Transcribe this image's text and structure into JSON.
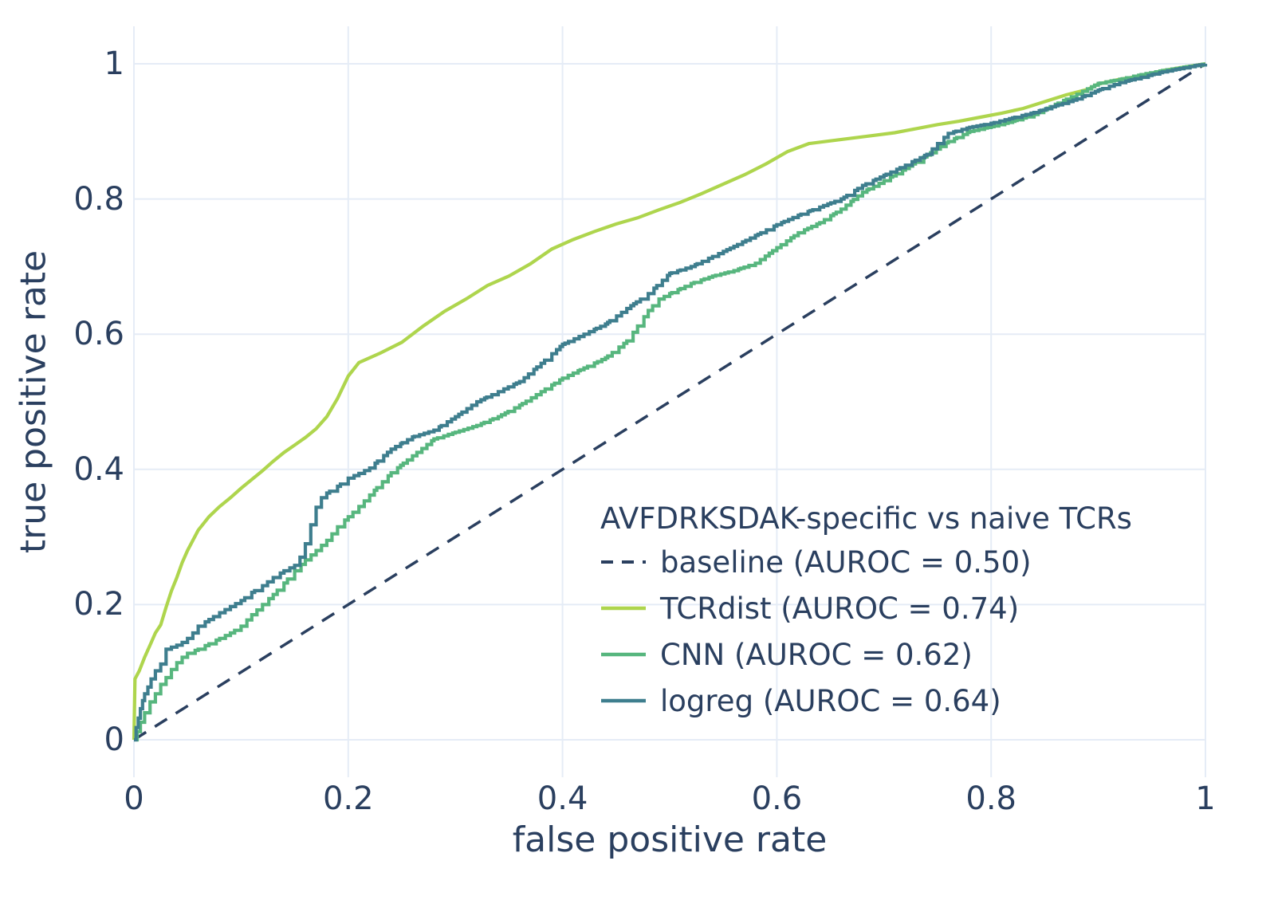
{
  "figure": {
    "background": "#ffffff",
    "text_color": "#2a3f5f",
    "grid_color": "#e5ecf6"
  },
  "axes": {
    "x": {
      "title": "false positive rate",
      "tick_labels": [
        "0",
        "0.2",
        "0.4",
        "0.6",
        "0.8",
        "1"
      ],
      "tick_values": [
        0,
        0.2,
        0.4,
        0.6,
        0.8,
        1
      ]
    },
    "y": {
      "title": "true positive rate",
      "tick_labels": [
        "0",
        "0.2",
        "0.4",
        "0.6",
        "0.8",
        "1"
      ],
      "tick_values": [
        0,
        0.2,
        0.4,
        0.6,
        0.8,
        1
      ]
    }
  },
  "legend": {
    "title": "AVFDRKSDAK-specific vs naive TCRs",
    "position": "lower right"
  },
  "chart_data": {
    "type": "line",
    "title": "AVFDRKSDAK-specific vs naive TCRs",
    "xlabel": "false positive rate",
    "ylabel": "true positive rate",
    "xlim": [
      0,
      1
    ],
    "ylim": [
      0,
      1
    ],
    "grid": true,
    "legend_position": "lower right",
    "series": [
      {
        "name": "baseline",
        "label": "baseline (AUROC = 0.50)",
        "auroc": 0.5,
        "color": "#2a3f5f",
        "dash": "dashed",
        "style": "line",
        "points": [
          [
            0,
            0
          ],
          [
            1,
            1
          ]
        ]
      },
      {
        "name": "TCRdist",
        "label": "TCRdist (AUROC = 0.74)",
        "auroc": 0.74,
        "color": "#aed54d",
        "dash": "solid",
        "style": "line",
        "points": [
          [
            0,
            0
          ],
          [
            0.001,
            0.09
          ],
          [
            0.005,
            0.102
          ],
          [
            0.01,
            0.122
          ],
          [
            0.015,
            0.14
          ],
          [
            0.02,
            0.158
          ],
          [
            0.025,
            0.17
          ],
          [
            0.03,
            0.196
          ],
          [
            0.035,
            0.22
          ],
          [
            0.04,
            0.24
          ],
          [
            0.045,
            0.262
          ],
          [
            0.05,
            0.28
          ],
          [
            0.06,
            0.31
          ],
          [
            0.07,
            0.33
          ],
          [
            0.08,
            0.345
          ],
          [
            0.09,
            0.358
          ],
          [
            0.1,
            0.372
          ],
          [
            0.11,
            0.385
          ],
          [
            0.12,
            0.398
          ],
          [
            0.13,
            0.412
          ],
          [
            0.14,
            0.425
          ],
          [
            0.15,
            0.436
          ],
          [
            0.16,
            0.447
          ],
          [
            0.17,
            0.46
          ],
          [
            0.18,
            0.478
          ],
          [
            0.19,
            0.505
          ],
          [
            0.2,
            0.538
          ],
          [
            0.21,
            0.558
          ],
          [
            0.23,
            0.572
          ],
          [
            0.25,
            0.588
          ],
          [
            0.27,
            0.612
          ],
          [
            0.29,
            0.634
          ],
          [
            0.31,
            0.652
          ],
          [
            0.33,
            0.672
          ],
          [
            0.35,
            0.686
          ],
          [
            0.37,
            0.704
          ],
          [
            0.39,
            0.726
          ],
          [
            0.41,
            0.74
          ],
          [
            0.43,
            0.752
          ],
          [
            0.45,
            0.763
          ],
          [
            0.47,
            0.772
          ],
          [
            0.49,
            0.784
          ],
          [
            0.51,
            0.795
          ],
          [
            0.53,
            0.808
          ],
          [
            0.55,
            0.822
          ],
          [
            0.57,
            0.836
          ],
          [
            0.59,
            0.852
          ],
          [
            0.61,
            0.87
          ],
          [
            0.63,
            0.882
          ],
          [
            0.65,
            0.886
          ],
          [
            0.67,
            0.89
          ],
          [
            0.69,
            0.894
          ],
          [
            0.71,
            0.898
          ],
          [
            0.73,
            0.904
          ],
          [
            0.75,
            0.91
          ],
          [
            0.77,
            0.915
          ],
          [
            0.79,
            0.921
          ],
          [
            0.81,
            0.927
          ],
          [
            0.83,
            0.934
          ],
          [
            0.85,
            0.944
          ],
          [
            0.87,
            0.954
          ],
          [
            0.89,
            0.962
          ],
          [
            0.9,
            0.97
          ],
          [
            0.92,
            0.977
          ],
          [
            0.94,
            0.982
          ],
          [
            0.96,
            0.99
          ],
          [
            0.98,
            0.995
          ],
          [
            1,
            1
          ]
        ]
      },
      {
        "name": "CNN",
        "label": "CNN (AUROC = 0.62)",
        "auroc": 0.62,
        "color": "#57b67e",
        "dash": "solid",
        "style": "step",
        "points": [
          [
            0,
            0
          ],
          [
            0.003,
            0.012
          ],
          [
            0.006,
            0.026
          ],
          [
            0.01,
            0.04
          ],
          [
            0.015,
            0.056
          ],
          [
            0.02,
            0.068
          ],
          [
            0.025,
            0.082
          ],
          [
            0.03,
            0.092
          ],
          [
            0.035,
            0.104
          ],
          [
            0.04,
            0.114
          ],
          [
            0.045,
            0.122
          ],
          [
            0.05,
            0.128
          ],
          [
            0.06,
            0.134
          ],
          [
            0.07,
            0.142
          ],
          [
            0.08,
            0.15
          ],
          [
            0.09,
            0.158
          ],
          [
            0.1,
            0.168
          ],
          [
            0.11,
            0.185
          ],
          [
            0.12,
            0.2
          ],
          [
            0.13,
            0.215
          ],
          [
            0.14,
            0.232
          ],
          [
            0.15,
            0.25
          ],
          [
            0.16,
            0.266
          ],
          [
            0.17,
            0.28
          ],
          [
            0.18,
            0.295
          ],
          [
            0.19,
            0.315
          ],
          [
            0.2,
            0.33
          ],
          [
            0.21,
            0.345
          ],
          [
            0.22,
            0.362
          ],
          [
            0.24,
            0.395
          ],
          [
            0.26,
            0.42
          ],
          [
            0.28,
            0.445
          ],
          [
            0.3,
            0.455
          ],
          [
            0.32,
            0.465
          ],
          [
            0.34,
            0.478
          ],
          [
            0.36,
            0.495
          ],
          [
            0.38,
            0.515
          ],
          [
            0.4,
            0.535
          ],
          [
            0.42,
            0.55
          ],
          [
            0.44,
            0.565
          ],
          [
            0.46,
            0.59
          ],
          [
            0.47,
            0.612
          ],
          [
            0.48,
            0.635
          ],
          [
            0.49,
            0.652
          ],
          [
            0.5,
            0.66
          ],
          [
            0.52,
            0.675
          ],
          [
            0.54,
            0.686
          ],
          [
            0.56,
            0.694
          ],
          [
            0.58,
            0.705
          ],
          [
            0.6,
            0.728
          ],
          [
            0.62,
            0.75
          ],
          [
            0.64,
            0.765
          ],
          [
            0.66,
            0.785
          ],
          [
            0.68,
            0.81
          ],
          [
            0.7,
            0.827
          ],
          [
            0.72,
            0.845
          ],
          [
            0.74,
            0.865
          ],
          [
            0.76,
            0.885
          ],
          [
            0.78,
            0.9
          ],
          [
            0.8,
            0.907
          ],
          [
            0.82,
            0.915
          ],
          [
            0.84,
            0.925
          ],
          [
            0.86,
            0.94
          ],
          [
            0.88,
            0.955
          ],
          [
            0.9,
            0.971
          ],
          [
            0.92,
            0.977
          ],
          [
            0.94,
            0.984
          ],
          [
            0.96,
            0.99
          ],
          [
            0.98,
            0.995
          ],
          [
            1,
            1
          ]
        ]
      },
      {
        "name": "logreg",
        "label": "logreg (AUROC = 0.64)",
        "auroc": 0.64,
        "color": "#3e7e8e",
        "dash": "solid",
        "style": "step",
        "points": [
          [
            0,
            0
          ],
          [
            0.002,
            0.018
          ],
          [
            0.004,
            0.032
          ],
          [
            0.006,
            0.046
          ],
          [
            0.008,
            0.058
          ],
          [
            0.01,
            0.068
          ],
          [
            0.013,
            0.078
          ],
          [
            0.016,
            0.09
          ],
          [
            0.02,
            0.102
          ],
          [
            0.025,
            0.112
          ],
          [
            0.03,
            0.134
          ],
          [
            0.035,
            0.137
          ],
          [
            0.04,
            0.14
          ],
          [
            0.045,
            0.144
          ],
          [
            0.05,
            0.15
          ],
          [
            0.055,
            0.158
          ],
          [
            0.06,
            0.168
          ],
          [
            0.07,
            0.178
          ],
          [
            0.08,
            0.188
          ],
          [
            0.09,
            0.197
          ],
          [
            0.1,
            0.206
          ],
          [
            0.11,
            0.218
          ],
          [
            0.12,
            0.228
          ],
          [
            0.13,
            0.24
          ],
          [
            0.14,
            0.25
          ],
          [
            0.15,
            0.258
          ],
          [
            0.155,
            0.27
          ],
          [
            0.16,
            0.29
          ],
          [
            0.165,
            0.318
          ],
          [
            0.17,
            0.344
          ],
          [
            0.175,
            0.358
          ],
          [
            0.18,
            0.365
          ],
          [
            0.19,
            0.375
          ],
          [
            0.2,
            0.387
          ],
          [
            0.21,
            0.394
          ],
          [
            0.22,
            0.402
          ],
          [
            0.24,
            0.43
          ],
          [
            0.26,
            0.448
          ],
          [
            0.28,
            0.458
          ],
          [
            0.3,
            0.478
          ],
          [
            0.32,
            0.5
          ],
          [
            0.34,
            0.515
          ],
          [
            0.36,
            0.53
          ],
          [
            0.38,
            0.557
          ],
          [
            0.4,
            0.585
          ],
          [
            0.42,
            0.6
          ],
          [
            0.44,
            0.615
          ],
          [
            0.46,
            0.638
          ],
          [
            0.48,
            0.66
          ],
          [
            0.5,
            0.69
          ],
          [
            0.52,
            0.7
          ],
          [
            0.54,
            0.715
          ],
          [
            0.56,
            0.73
          ],
          [
            0.58,
            0.746
          ],
          [
            0.6,
            0.762
          ],
          [
            0.62,
            0.776
          ],
          [
            0.64,
            0.788
          ],
          [
            0.66,
            0.8
          ],
          [
            0.68,
            0.82
          ],
          [
            0.7,
            0.835
          ],
          [
            0.72,
            0.85
          ],
          [
            0.74,
            0.866
          ],
          [
            0.75,
            0.882
          ],
          [
            0.76,
            0.897
          ],
          [
            0.78,
            0.906
          ],
          [
            0.8,
            0.912
          ],
          [
            0.82,
            0.92
          ],
          [
            0.84,
            0.928
          ],
          [
            0.86,
            0.938
          ],
          [
            0.88,
            0.948
          ],
          [
            0.9,
            0.961
          ],
          [
            0.92,
            0.972
          ],
          [
            0.94,
            0.98
          ],
          [
            0.96,
            0.988
          ],
          [
            0.98,
            0.994
          ],
          [
            1,
            1
          ]
        ]
      }
    ]
  }
}
